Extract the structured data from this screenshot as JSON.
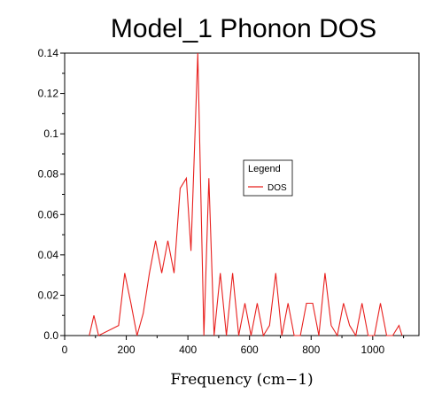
{
  "chart_data": {
    "type": "line",
    "title": "Model_1 Phonon DOS",
    "xlabel": "Frequency (cm−1)",
    "ylabel": "",
    "xlim": [
      0,
      1150
    ],
    "ylim": [
      0,
      0.14
    ],
    "x_ticks": [
      "0",
      "200",
      "400",
      "600",
      "800",
      "1000"
    ],
    "x_tick_values": [
      0,
      200,
      400,
      600,
      800,
      1000
    ],
    "y_ticks": [
      "0.0",
      "0.02",
      "0.04",
      "0.06",
      "0.08",
      "0.1",
      "0.12",
      "0.14"
    ],
    "y_tick_values": [
      0,
      0.02,
      0.04,
      0.06,
      0.08,
      0.1,
      0.12,
      0.14
    ],
    "legend": {
      "title": "Legend",
      "placement": "center-right"
    },
    "grid": false,
    "series": [
      {
        "name": "DOS",
        "color": "#e8201e",
        "x": [
          80,
          95,
          110,
          175,
          195,
          215,
          235,
          255,
          275,
          295,
          315,
          335,
          355,
          375,
          395,
          410,
          432,
          452,
          468,
          485,
          505,
          525,
          545,
          565,
          585,
          605,
          625,
          645,
          665,
          685,
          705,
          725,
          745,
          765,
          785,
          805,
          825,
          845,
          865,
          885,
          905,
          925,
          945,
          965,
          985,
          1005,
          1025,
          1045,
          1065,
          1085,
          1095
        ],
        "values": [
          0.0,
          0.01,
          0.0,
          0.005,
          0.031,
          0.016,
          0.0,
          0.011,
          0.031,
          0.047,
          0.031,
          0.047,
          0.031,
          0.073,
          0.078,
          0.042,
          0.14,
          0.0,
          0.078,
          0.0,
          0.031,
          0.0,
          0.031,
          0.0,
          0.016,
          0.0,
          0.016,
          0.0,
          0.005,
          0.031,
          0.0,
          0.016,
          0.0,
          0.0,
          0.016,
          0.016,
          0.0,
          0.031,
          0.005,
          0.0,
          0.016,
          0.005,
          0.0,
          0.016,
          0.0,
          0.0,
          0.016,
          0.0,
          0.0,
          0.005,
          0.0
        ]
      }
    ]
  }
}
